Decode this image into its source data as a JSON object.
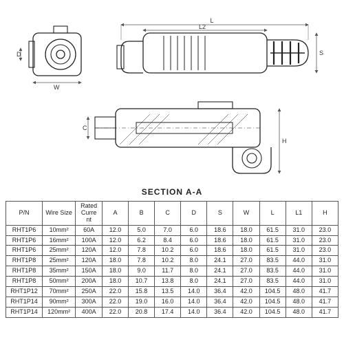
{
  "section_label": "SECTION  A-A",
  "dim_labels": {
    "L": "L",
    "L2": "L2",
    "D": "D",
    "W": "W",
    "C": "C",
    "H": "H",
    "S": "S"
  },
  "table": {
    "columns": [
      "P/N",
      "Wire Size",
      "Rated Current",
      "A",
      "B",
      "C",
      "D",
      "S",
      "W",
      "L",
      "L1",
      "H"
    ],
    "rows": [
      [
        "RHT1P6",
        "10mm²",
        "60A",
        "12.0",
        "5.0",
        "7.0",
        "6.0",
        "18.6",
        "18.0",
        "61.5",
        "31.0",
        "23.0"
      ],
      [
        "RHT1P6",
        "16mm²",
        "100A",
        "12.0",
        "6.2",
        "8.4",
        "6.0",
        "18.6",
        "18.0",
        "61.5",
        "31.0",
        "23.0"
      ],
      [
        "RHT1P6",
        "25mm²",
        "120A",
        "12.0",
        "7.8",
        "10.2",
        "6.0",
        "18.6",
        "18.0",
        "61.5",
        "31.0",
        "23.0"
      ],
      [
        "RHT1P8",
        "25mm²",
        "120A",
        "18.0",
        "7.8",
        "10.2",
        "8.0",
        "24.1",
        "27.0",
        "83.5",
        "44.0",
        "31.0"
      ],
      [
        "RHT1P8",
        "35mm²",
        "150A",
        "18.0",
        "9.0",
        "11.7",
        "8.0",
        "24.1",
        "27.0",
        "83.5",
        "44.0",
        "31.0"
      ],
      [
        "RHT1P8",
        "50mm²",
        "200A",
        "18.0",
        "10.7",
        "13.8",
        "8.0",
        "24.1",
        "27.0",
        "83.5",
        "44.0",
        "31.0"
      ],
      [
        "RHT1P12",
        "70mm²",
        "250A",
        "22.0",
        "15.8",
        "13.5",
        "14.0",
        "36.4",
        "42.0",
        "104.5",
        "48.0",
        "41.7"
      ],
      [
        "RHT1P14",
        "90mm²",
        "300A",
        "22.0",
        "19.0",
        "16.0",
        "14.0",
        "36.4",
        "42.0",
        "104.5",
        "48.0",
        "41.7"
      ],
      [
        "RHT1P14",
        "120mm²",
        "400A",
        "22.0",
        "20.8",
        "17.4",
        "14.0",
        "36.4",
        "42.0",
        "104.5",
        "48.0",
        "41.7"
      ]
    ]
  },
  "style": {
    "stroke": "#222222",
    "stroke_width": 1.1,
    "dim_stroke": "#555555",
    "dim_stroke_width": 0.8,
    "font_size_dim": 9
  }
}
